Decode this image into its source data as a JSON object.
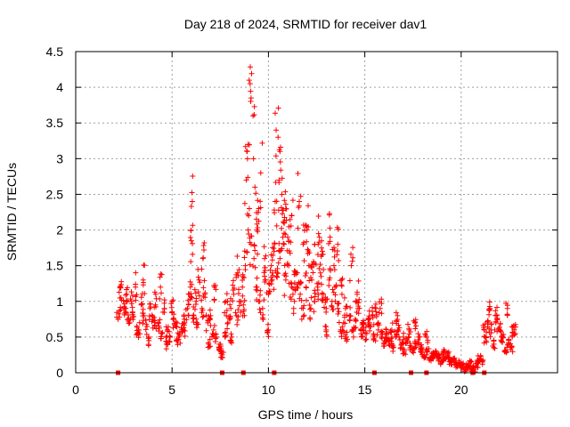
{
  "chart_data": {
    "type": "scatter",
    "title": "Day 218 of 2024, SRMTID for receiver dav1",
    "xlabel": "GPS time / hours",
    "ylabel": "SRMTID / TECUs",
    "xlim": [
      0,
      25
    ],
    "ylim": [
      0,
      4.5
    ],
    "grid": true,
    "marker": "+",
    "color": "#ff0000",
    "x_ticks": [
      "0",
      "5",
      "10",
      "15",
      "20"
    ],
    "y_ticks": [
      "0",
      "0.5",
      "1",
      "1.5",
      "2",
      "2.5",
      "3",
      "3.5",
      "4",
      "4.5"
    ],
    "zero_points_x": [
      2.2,
      7.6,
      8.7,
      10.3,
      15.5,
      17.4,
      18.2,
      20.6,
      21.2
    ],
    "series": [
      {
        "name": "dav1",
        "x": [
          2.2,
          2.35,
          2.5,
          2.65,
          2.8,
          2.95,
          3.1,
          3.25,
          3.4,
          3.55,
          3.7,
          3.85,
          4.0,
          4.15,
          4.3,
          4.45,
          4.6,
          4.75,
          4.9,
          5.05,
          5.2,
          5.35,
          5.5,
          5.65,
          5.8,
          5.95,
          6.1,
          6.25,
          6.4,
          6.55,
          6.7,
          6.85,
          7.0,
          7.15,
          7.3,
          7.45,
          7.6,
          7.75,
          7.9,
          8.05,
          8.2,
          8.35,
          8.5,
          8.65,
          8.8,
          8.95,
          9.1,
          9.25,
          9.4,
          9.55,
          9.7,
          9.85,
          10.0,
          10.15,
          10.3,
          10.45,
          10.6,
          10.75,
          10.9,
          11.05,
          11.2,
          11.35,
          11.5,
          11.65,
          11.8,
          11.95,
          12.1,
          12.25,
          12.4,
          12.55,
          12.7,
          12.85,
          13.0,
          13.15,
          13.3,
          13.45,
          13.6,
          13.75,
          13.9,
          14.05,
          14.2,
          14.35,
          14.5,
          14.65,
          14.8,
          14.95,
          15.1,
          15.25,
          15.4,
          15.55,
          15.7,
          15.85,
          16.0,
          16.15,
          16.3,
          16.45,
          16.6,
          16.75,
          16.9,
          17.05,
          17.2,
          17.35,
          17.5,
          17.65,
          17.8,
          17.95,
          18.1,
          18.25,
          18.4,
          18.55,
          18.7,
          18.85,
          19.0,
          19.15,
          19.3,
          19.45,
          19.6,
          19.75,
          19.9,
          20.05,
          20.2,
          20.35,
          20.5,
          20.65,
          20.8,
          20.95,
          21.1,
          21.25,
          21.4,
          21.55,
          21.7,
          21.85,
          22.0,
          22.15,
          22.3,
          22.45,
          22.6,
          22.75,
          2.3,
          2.6,
          2.9,
          3.2,
          3.5,
          3.8,
          4.1,
          4.4,
          4.7,
          5.0,
          5.3,
          5.6,
          5.9,
          6.0,
          6.05,
          6.3,
          6.6,
          6.9,
          7.2,
          7.5,
          7.8,
          8.1,
          8.4,
          8.7,
          8.85,
          8.9,
          8.95,
          9.0,
          9.05,
          9.1,
          9.2,
          9.3,
          9.4,
          9.5,
          9.6,
          9.8,
          10.0,
          10.2,
          10.35,
          10.4,
          10.5,
          10.55,
          10.6,
          10.7,
          10.8,
          10.9,
          11.0,
          11.2,
          11.4,
          11.6,
          11.8,
          12.0,
          12.2,
          12.4,
          12.6,
          12.8,
          13.0,
          13.2,
          13.4,
          13.6,
          13.8,
          14.0,
          14.3,
          14.6,
          14.9,
          15.2,
          15.5,
          15.8,
          16.1,
          16.4,
          16.7,
          17.0,
          17.3,
          17.6,
          17.9,
          18.2,
          18.5,
          18.8,
          19.1,
          19.4,
          19.7,
          20.0,
          20.3,
          20.6,
          20.9,
          21.2,
          21.5,
          21.8,
          22.1,
          22.4,
          22.7
        ],
        "y": [
          0.75,
          1.05,
          0.9,
          1.1,
          0.7,
          0.85,
          1.2,
          0.6,
          0.95,
          0.8,
          0.65,
          0.9,
          0.75,
          1.1,
          0.7,
          0.55,
          0.9,
          0.6,
          0.5,
          0.75,
          0.65,
          0.5,
          0.6,
          0.7,
          0.9,
          1.2,
          0.8,
          1.0,
          1.3,
          0.9,
          1.1,
          0.7,
          0.8,
          0.6,
          0.5,
          0.35,
          0.25,
          0.5,
          0.7,
          0.9,
          1.1,
          0.8,
          1.0,
          1.2,
          1.5,
          2.0,
          1.8,
          1.6,
          1.2,
          1.0,
          0.9,
          1.3,
          1.1,
          1.5,
          1.7,
          1.4,
          1.6,
          1.9,
          1.3,
          1.5,
          1.2,
          1.0,
          1.4,
          1.1,
          0.9,
          1.2,
          1.5,
          1.3,
          1.0,
          1.2,
          1.4,
          1.1,
          0.9,
          1.3,
          1.0,
          1.2,
          0.9,
          0.6,
          0.7,
          0.5,
          0.8,
          0.6,
          0.75,
          0.9,
          0.6,
          0.7,
          0.55,
          0.7,
          0.8,
          0.9,
          0.6,
          0.5,
          0.4,
          0.55,
          0.45,
          0.35,
          0.5,
          0.6,
          0.4,
          0.3,
          0.45,
          0.35,
          0.3,
          0.4,
          0.5,
          0.35,
          0.25,
          0.3,
          0.2,
          0.25,
          0.3,
          0.2,
          0.15,
          0.2,
          0.25,
          0.15,
          0.2,
          0.1,
          0.15,
          0.1,
          0.05,
          0.1,
          0.15,
          0.05,
          0.1,
          0.2,
          0.15,
          0.5,
          0.7,
          0.6,
          0.4,
          0.8,
          0.6,
          0.5,
          0.3,
          0.4,
          0.35,
          0.6,
          1.2,
          0.9,
          1.0,
          0.55,
          1.3,
          0.45,
          0.65,
          1.2,
          0.4,
          1.0,
          0.45,
          0.6,
          1.1,
          1.85,
          2.4,
          0.7,
          1.6,
          0.4,
          1.2,
          0.3,
          1.0,
          0.5,
          1.4,
          0.95,
          2.7,
          3.1,
          3.2,
          4.1,
          4.05,
          3.85,
          3.6,
          2.6,
          2.0,
          2.3,
          2.8,
          1.6,
          0.6,
          1.4,
          2.4,
          3.4,
          3.3,
          2.7,
          3.1,
          2.5,
          2.1,
          2.3,
          1.9,
          2.2,
          1.4,
          2.4,
          1.8,
          2.0,
          0.9,
          1.8,
          1.95,
          1.7,
          0.6,
          1.9,
          1.5,
          1.8,
          1.3,
          0.9,
          1.5,
          1.1,
          0.6,
          0.75,
          0.5,
          0.9,
          0.45,
          0.6,
          0.8,
          0.5,
          0.6,
          0.7,
          0.3,
          0.5,
          0.2,
          0.25,
          0.3,
          0.2,
          0.15,
          0.1,
          0.1,
          0.05,
          0.15,
          0.6,
          0.9,
          0.7,
          0.5,
          0.9,
          0.55
        ]
      }
    ]
  }
}
